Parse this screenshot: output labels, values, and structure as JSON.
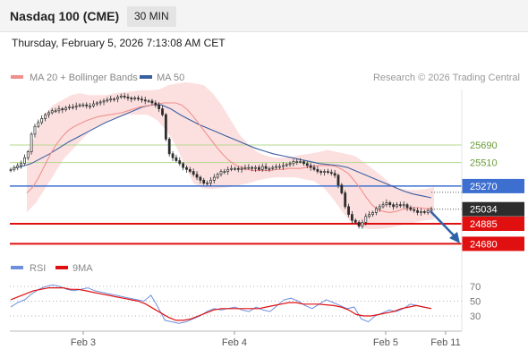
{
  "header": {
    "title": "Nasdaq 100 (CME)",
    "timeframe": "30 MIN",
    "datetime": "Thursday, February 5, 2026 7:13:08 AM CET"
  },
  "legend": {
    "ma20_label": "MA 20 + Bollinger Bands",
    "ma50_label": "MA 50",
    "credit": "Research © 2026 Trading Central"
  },
  "rsi_legend": {
    "rsi_label": "RSI",
    "ma_label": "9MA"
  },
  "colors": {
    "ma20": "#f0908c",
    "ma50": "#3a5fa0",
    "bollinger_fill": "#fbdada",
    "candle": "#2d2d2d",
    "green_level": "#b5d88f",
    "blue_level": "#3d6fd0",
    "red_level": "#e01010",
    "arrow": "#2f63a8",
    "rsi": "#6d8fde",
    "rsi_ma": "#e01010"
  },
  "chart_data": [
    {
      "type": "candlestick",
      "title": "Nasdaq 100 (CME)",
      "timeframe": "30 MIN",
      "x_ticks": [
        "Feb 3",
        "Feb 4",
        "Feb 5",
        "Feb 11"
      ],
      "ylim": [
        24600,
        26400
      ],
      "horizontal_levels": [
        {
          "value": 25690,
          "label": "25690",
          "style": "green"
        },
        {
          "value": 25510,
          "label": "25510",
          "style": "green"
        },
        {
          "value": 25270,
          "label": "25270",
          "style": "blue"
        },
        {
          "value": 25034,
          "label": "25034",
          "style": "current"
        },
        {
          "value": 24885,
          "label": "24885",
          "style": "red"
        },
        {
          "value": 24680,
          "label": "24680",
          "style": "red"
        }
      ],
      "close_approx": [
        25440,
        25460,
        25480,
        25500,
        25560,
        25620,
        25800,
        25880,
        25920,
        25960,
        26000,
        26020,
        26040,
        26040,
        26060,
        26050,
        26070,
        26080,
        26080,
        26090,
        26100,
        26100,
        26090,
        26090,
        26110,
        26120,
        26130,
        26140,
        26150,
        26160,
        26160,
        26180,
        26190,
        26180,
        26170,
        26160,
        26170,
        26160,
        26150,
        26140,
        26140,
        26120,
        26100,
        26060,
        26000,
        25750,
        25600,
        25560,
        25530,
        25500,
        25460,
        25440,
        25420,
        25390,
        25360,
        25330,
        25300,
        25300,
        25330,
        25360,
        25390,
        25420,
        25420,
        25440,
        25450,
        25450,
        25440,
        25450,
        25460,
        25460,
        25450,
        25460,
        25440,
        25470,
        25450,
        25450,
        25460,
        25470,
        25470,
        25480,
        25490,
        25500,
        25520,
        25520,
        25520,
        25500,
        25480,
        25460,
        25440,
        25420,
        25410,
        25420,
        25410,
        25400,
        25380,
        25280,
        25200,
        25060,
        24980,
        24920,
        24900,
        24860,
        24900,
        24960,
        24980,
        25000,
        25040,
        25060,
        25080,
        25100,
        25080,
        25060,
        25080,
        25070,
        25080,
        25050,
        25030,
        25020,
        25000,
        25010,
        25000,
        25020,
        25034
      ],
      "ma20_approx": [
        25200,
        25260,
        25360,
        25480,
        25600,
        25700,
        25780,
        25840,
        25880,
        25910,
        25940,
        25960,
        25980,
        25990,
        26000,
        26010,
        26020,
        26040,
        26060,
        26080,
        26090,
        26100,
        26110,
        26120,
        26120,
        26120,
        26100,
        26050,
        25980,
        25900,
        25820,
        25740,
        25660,
        25590,
        25530,
        25490,
        25460,
        25440,
        25430,
        25430,
        25430,
        25430,
        25440,
        25440,
        25450,
        25450,
        25450,
        25460,
        25470,
        25480,
        25480,
        25480,
        25470,
        25440,
        25400,
        25330,
        25250,
        25160,
        25080,
        25030,
        25010,
        25000,
        25010,
        25030,
        25040,
        25050,
        25050,
        25040,
        25040
      ],
      "ma50_approx": [
        25450,
        25470,
        25500,
        25550,
        25600,
        25660,
        25720,
        25770,
        25820,
        25870,
        25920,
        25960,
        26000,
        26040,
        26080,
        26100,
        26100,
        26060,
        26000,
        25950,
        25900,
        25860,
        25820,
        25780,
        25740,
        25700,
        25660,
        25630,
        25600,
        25580,
        25560,
        25540,
        25520,
        25500,
        25490,
        25480,
        25460,
        25420,
        25380,
        25340,
        25300,
        25260,
        25220,
        25190,
        25170,
        25150
      ],
      "bb_upper_approx": [
        25600,
        25800,
        26000,
        26100,
        26150,
        26200,
        26220,
        26200,
        26200,
        26200,
        26220,
        26230,
        26240,
        26250,
        26250,
        26260,
        26300,
        26320,
        26330,
        26320,
        26300,
        26220,
        26100,
        25950,
        25800,
        25700,
        25620,
        25580,
        25560,
        25560,
        25570,
        25590,
        25600,
        25620,
        25640,
        25620,
        25600,
        25580,
        25520,
        25450,
        25380,
        25300,
        25250,
        25230,
        25230,
        25240,
        25260
      ],
      "bb_lower_approx": [
        25000,
        25100,
        25250,
        25400,
        25550,
        25650,
        25750,
        25850,
        25900,
        25950,
        25980,
        26000,
        26000,
        26000,
        25950,
        25850,
        25700,
        25500,
        25300,
        25250,
        25240,
        25250,
        25260,
        25280,
        25300,
        25330,
        25350,
        25360,
        25360,
        25360,
        25340,
        25320,
        25260,
        25150,
        25020,
        24900,
        24850,
        24830,
        24830,
        24840,
        24860,
        24880,
        24900,
        24920,
        24930
      ]
    },
    {
      "type": "line",
      "title": "RSI",
      "series": [
        {
          "name": "RSI",
          "values": [
            42,
            48,
            52,
            60,
            66,
            70,
            72,
            70,
            66,
            64,
            66,
            68,
            64,
            62,
            60,
            58,
            56,
            54,
            52,
            50,
            58,
            42,
            24,
            22,
            20,
            22,
            26,
            30,
            36,
            40,
            38,
            40,
            42,
            38,
            36,
            42,
            38,
            36,
            44,
            52,
            54,
            50,
            44,
            40,
            46,
            52,
            48,
            44,
            40,
            42,
            26,
            22,
            30,
            34,
            38,
            36,
            40,
            46,
            44,
            42,
            40
          ]
        },
        {
          "name": "9MA",
          "values": [
            52,
            56,
            60,
            64,
            66,
            68,
            68,
            68,
            66,
            66,
            64,
            62,
            60,
            58,
            56,
            54,
            52,
            50,
            46,
            40,
            34,
            28,
            24,
            24,
            26,
            30,
            34,
            38,
            40,
            40,
            40,
            40,
            40,
            40,
            42,
            44,
            46,
            48,
            48,
            46,
            46,
            46,
            45,
            44,
            42,
            38,
            32,
            30,
            30,
            32,
            34,
            36,
            40,
            42,
            44,
            42,
            40
          ]
        }
      ],
      "ylim": [
        0,
        100
      ],
      "y_ticks": [
        70,
        50,
        30
      ]
    }
  ]
}
